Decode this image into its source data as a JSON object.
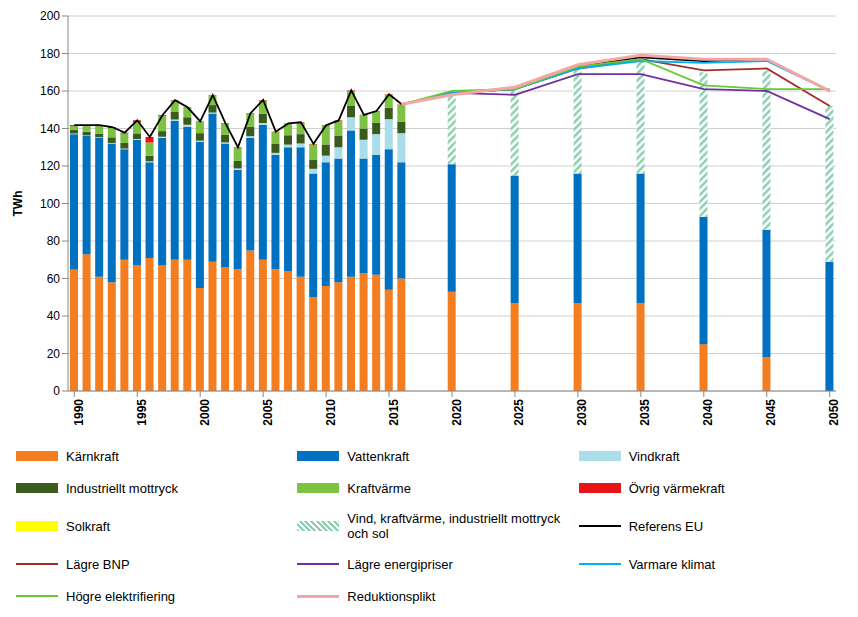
{
  "chart_data": {
    "type": "bar",
    "stacked": true,
    "grid": true,
    "y_label": "TWh",
    "x": [
      1990,
      1991,
      1992,
      1993,
      1994,
      1995,
      1996,
      1997,
      1998,
      1999,
      2000,
      2001,
      2002,
      2003,
      2004,
      2005,
      2006,
      2007,
      2008,
      2009,
      2010,
      2011,
      2012,
      2013,
      2014,
      2015,
      2016,
      2020,
      2025,
      2030,
      2035,
      2040,
      2045,
      2050
    ],
    "xlim": [
      1989.5,
      2050.5
    ],
    "xticks": [
      1990,
      1995,
      2000,
      2005,
      2010,
      2015,
      2020,
      2025,
      2030,
      2035,
      2040,
      2045,
      2050
    ],
    "ylim": [
      0,
      200
    ],
    "yticks": [
      0,
      20,
      40,
      60,
      80,
      100,
      120,
      140,
      160,
      180,
      200
    ],
    "series": [
      {
        "name": "Kärnkraft",
        "type": "bar",
        "color": "#F47D20",
        "values": [
          65,
          73,
          61,
          58,
          70,
          67,
          71,
          67,
          70,
          70,
          55,
          69,
          66,
          65,
          75,
          70,
          65,
          64,
          61,
          50,
          56,
          58,
          61,
          63,
          62,
          54,
          60,
          53,
          47,
          47,
          47,
          25,
          18,
          0
        ]
      },
      {
        "name": "Vattenkraft",
        "type": "bar",
        "color": "#0070C0",
        "values": [
          72,
          63,
          74,
          74,
          59,
          67,
          51,
          68,
          74,
          71,
          78,
          79,
          66,
          53,
          60,
          72,
          61,
          66,
          69,
          66,
          66,
          66,
          78,
          61,
          64,
          75,
          62,
          68,
          68,
          69,
          69,
          68,
          68,
          69
        ]
      },
      {
        "name": "Vindkraft",
        "type": "bar",
        "color": "#A9DDE9",
        "values": [
          0.3,
          0.3,
          0.3,
          0.3,
          0.3,
          0.4,
          0.5,
          0.6,
          0.8,
          1,
          0.5,
          0.5,
          0.6,
          0.7,
          0.9,
          0.9,
          1,
          1.4,
          2,
          2.5,
          3.5,
          6,
          7,
          10,
          11,
          16,
          15.5,
          null,
          null,
          null,
          null,
          null,
          null,
          null
        ]
      },
      {
        "name": "Industriellt mottryck",
        "type": "bar",
        "color": "#3B5A1E",
        "values": [
          2,
          2,
          2,
          3,
          3,
          3,
          3,
          3,
          4,
          4,
          4,
          4,
          4,
          4,
          5,
          5,
          5,
          5,
          5,
          5,
          6,
          6,
          6,
          6,
          6,
          6,
          6,
          null,
          null,
          null,
          null,
          null,
          null,
          null
        ]
      },
      {
        "name": "Kraftvärme",
        "type": "bar",
        "color": "#7DC242",
        "values": [
          2,
          3,
          4,
          5,
          5,
          6,
          7,
          8,
          6,
          5,
          6,
          5,
          6,
          7,
          7,
          7,
          6,
          6,
          6,
          8,
          10,
          8,
          8,
          7,
          6,
          7,
          9,
          null,
          null,
          null,
          null,
          null,
          null,
          null
        ]
      },
      {
        "name": "Övrig värmekraft",
        "type": "bar",
        "color": "#E81416",
        "values": [
          0.5,
          0.5,
          0.5,
          0.5,
          0.5,
          1,
          3,
          0.5,
          0.3,
          0.3,
          0.3,
          0.3,
          0.3,
          0.3,
          0.3,
          0.3,
          0.3,
          0.3,
          0.3,
          0.3,
          0.3,
          0.3,
          0.3,
          0.3,
          0.3,
          0.3,
          0.3,
          null,
          null,
          null,
          null,
          null,
          null,
          null
        ]
      },
      {
        "name": "Solkraft",
        "type": "bar",
        "color": "#FFFF00",
        "values": [
          0,
          0,
          0,
          0,
          0,
          0,
          0,
          0,
          0,
          0,
          0,
          0,
          0,
          0,
          0,
          0,
          0,
          0,
          0,
          0,
          0,
          0,
          0,
          0,
          0.1,
          0.1,
          0.1,
          null,
          null,
          null,
          null,
          null,
          null,
          null
        ]
      },
      {
        "name": "Vind, kraftvärme, industriellt mottryck och sol",
        "type": "bar",
        "color": "#8CCFB0",
        "line_style": "hatched",
        "values": [
          null,
          null,
          null,
          null,
          null,
          null,
          null,
          null,
          null,
          null,
          null,
          null,
          null,
          null,
          null,
          null,
          null,
          null,
          null,
          null,
          null,
          null,
          null,
          null,
          null,
          null,
          null,
          38,
          46,
          57,
          61,
          77,
          85,
          83
        ]
      },
      {
        "name": "Referens EU",
        "type": "line",
        "color": "#000000",
        "values": [
          141.8,
          141.8,
          141.8,
          140.8,
          137.8,
          144.4,
          135.5,
          147.1,
          155.1,
          151.3,
          143.8,
          157.8,
          142.9,
          130,
          148.2,
          155.2,
          138.3,
          142.7,
          143.3,
          131.8,
          141.8,
          144.3,
          160.3,
          147.3,
          149.3,
          158.3,
          152.9,
          159,
          161,
          173,
          178,
          176,
          177,
          160
        ]
      },
      {
        "name": "Lägre BNP",
        "type": "line",
        "color": "#A52A2A",
        "values": [
          null,
          null,
          null,
          null,
          null,
          null,
          null,
          null,
          null,
          null,
          null,
          null,
          null,
          null,
          null,
          null,
          null,
          null,
          null,
          null,
          null,
          null,
          null,
          null,
          null,
          null,
          152.9,
          159,
          161,
          172,
          177,
          171,
          172,
          152
        ]
      },
      {
        "name": "Lägre energipriser",
        "type": "line",
        "color": "#7030A0",
        "values": [
          null,
          null,
          null,
          null,
          null,
          null,
          null,
          null,
          null,
          null,
          null,
          null,
          null,
          null,
          null,
          null,
          null,
          null,
          null,
          null,
          null,
          null,
          null,
          null,
          null,
          null,
          152.9,
          159,
          158,
          169,
          169,
          161,
          160,
          145
        ]
      },
      {
        "name": "Varmare klimat",
        "type": "line",
        "color": "#00B0F0",
        "values": [
          null,
          null,
          null,
          null,
          null,
          null,
          null,
          null,
          null,
          null,
          null,
          null,
          null,
          null,
          null,
          null,
          null,
          null,
          null,
          null,
          null,
          null,
          null,
          null,
          null,
          null,
          152.9,
          159,
          161,
          172,
          176,
          175,
          176,
          160
        ]
      },
      {
        "name": "Högre elektrifiering",
        "type": "line",
        "color": "#66CC33",
        "values": [
          null,
          null,
          null,
          null,
          null,
          null,
          null,
          null,
          null,
          null,
          null,
          null,
          null,
          null,
          null,
          null,
          null,
          null,
          null,
          null,
          null,
          null,
          null,
          null,
          null,
          null,
          152.9,
          160,
          161,
          173,
          177,
          163,
          161,
          161
        ]
      },
      {
        "name": "Reduktionsplikt",
        "type": "line",
        "color": "#F4A6A6",
        "values": [
          null,
          null,
          null,
          null,
          null,
          null,
          null,
          null,
          null,
          null,
          null,
          null,
          null,
          null,
          null,
          null,
          null,
          null,
          null,
          null,
          null,
          null,
          null,
          null,
          null,
          null,
          152.9,
          158,
          162,
          174,
          179,
          177,
          177,
          160
        ]
      }
    ]
  }
}
